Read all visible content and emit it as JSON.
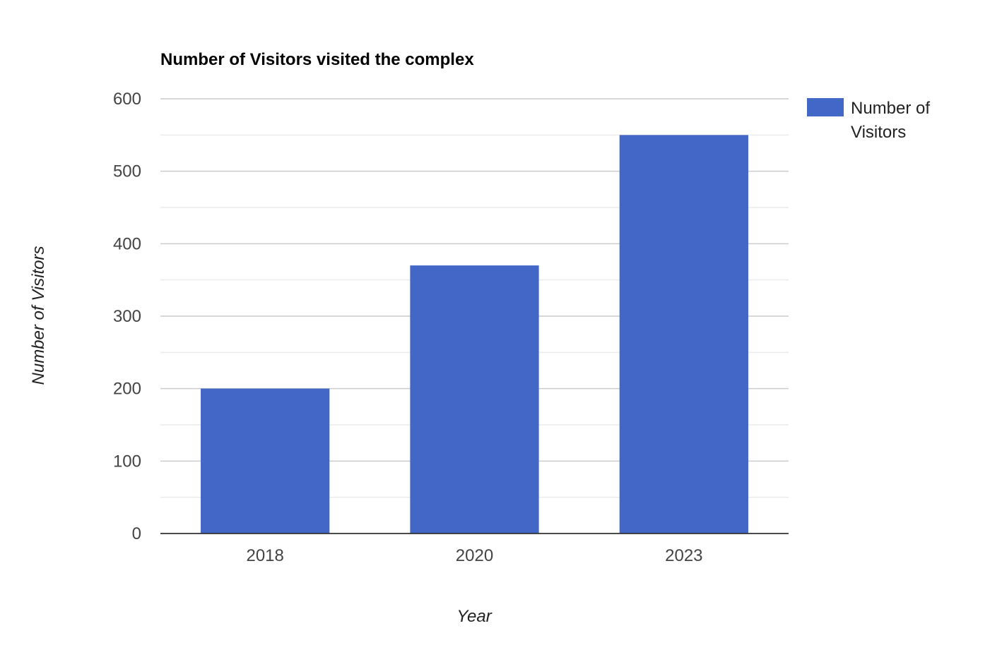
{
  "chart_data": {
    "type": "bar",
    "title": "Number of Visitors visited the complex",
    "xlabel": "Year",
    "ylabel": "Number of Visitors",
    "categories": [
      "2018",
      "2020",
      "2023"
    ],
    "series": [
      {
        "name": "Number of Visitors",
        "values": [
          200,
          370,
          550
        ],
        "color": "#4267c6"
      }
    ],
    "ylim": [
      0,
      600
    ],
    "yticks": [
      0,
      100,
      200,
      300,
      400,
      500,
      600
    ],
    "minor_gridlines": true,
    "grid": true,
    "legend": {
      "position": "right",
      "label_lines": [
        "Number of",
        "Visitors"
      ]
    },
    "colors": {
      "bar": "#4267c6",
      "gridline": "#cccccc",
      "minor_gridline": "#ebebeb",
      "baseline": "#333333"
    }
  }
}
